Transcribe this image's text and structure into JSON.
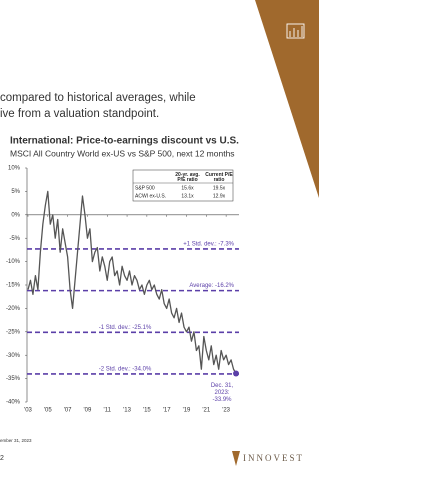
{
  "slide_text": [
    "compared to historical averages, while",
    "ive from a valuation standpoint."
  ],
  "footer": {
    "date": "ember 31, 2023",
    "page_number": "2",
    "logo": "INNOVEST"
  },
  "chart_data": {
    "type": "line",
    "title": "International: Price-to-earnings discount vs U.S.",
    "subtitle": "MSCI All Country World ex-US vs S&P 500, next 12 months",
    "xlim": [
      2002.9,
      2024.3
    ],
    "ylim": [
      -40,
      10
    ],
    "yticks": [
      {
        "value": 10,
        "label": "10%"
      },
      {
        "value": 5,
        "label": "5%"
      },
      {
        "value": 0,
        "label": "0%"
      },
      {
        "value": -5,
        "label": "-5%"
      },
      {
        "value": -10,
        "label": "-10%"
      },
      {
        "value": -15,
        "label": "-15%"
      },
      {
        "value": -20,
        "label": "-20%"
      },
      {
        "value": -25,
        "label": "-25%"
      },
      {
        "value": -30,
        "label": "-30%"
      },
      {
        "value": -35,
        "label": "-35%"
      },
      {
        "value": -40,
        "label": "-40%"
      }
    ],
    "xticks": [
      {
        "value": 2003,
        "label": "'03"
      },
      {
        "value": 2005,
        "label": "'05"
      },
      {
        "value": 2007,
        "label": "'07"
      },
      {
        "value": 2009,
        "label": "'09"
      },
      {
        "value": 2011,
        "label": "'11"
      },
      {
        "value": 2013,
        "label": "'13"
      },
      {
        "value": 2015,
        "label": "'15"
      },
      {
        "value": 2017,
        "label": "'17"
      },
      {
        "value": 2019,
        "label": "'19"
      },
      {
        "value": 2021,
        "label": "'21"
      },
      {
        "value": 2023,
        "label": "'23"
      }
    ],
    "x": [
      2003,
      2003.25,
      2003.5,
      2003.75,
      2004,
      2004.25,
      2004.5,
      2004.75,
      2005,
      2005.25,
      2005.5,
      2005.75,
      2006,
      2006.25,
      2006.5,
      2006.75,
      2007,
      2007.25,
      2007.5,
      2007.75,
      2008,
      2008.25,
      2008.5,
      2008.75,
      2009,
      2009.25,
      2009.5,
      2009.75,
      2010,
      2010.25,
      2010.5,
      2010.75,
      2011,
      2011.25,
      2011.5,
      2011.75,
      2012,
      2012.25,
      2012.5,
      2012.75,
      2013,
      2013.25,
      2013.5,
      2013.75,
      2014,
      2014.25,
      2014.5,
      2014.75,
      2015,
      2015.25,
      2015.5,
      2015.75,
      2016,
      2016.25,
      2016.5,
      2016.75,
      2017,
      2017.25,
      2017.5,
      2017.75,
      2018,
      2018.25,
      2018.5,
      2018.75,
      2019,
      2019.25,
      2019.5,
      2019.75,
      2020,
      2020.25,
      2020.5,
      2020.75,
      2021,
      2021.25,
      2021.5,
      2021.75,
      2022,
      2022.25,
      2022.5,
      2022.75,
      2023,
      2023.25,
      2023.5,
      2023.75,
      2024
    ],
    "series": [
      {
        "color": "#555555",
        "values": [
          -16,
          -14,
          -17,
          -13,
          -16,
          -8,
          -2,
          2,
          5,
          -2,
          0,
          -5,
          -1,
          -8,
          -3,
          -6,
          -9,
          -16,
          -20,
          -14,
          -8,
          -2,
          4,
          0,
          -5,
          -3,
          -10,
          -8,
          -7,
          -12,
          -9,
          -11,
          -14,
          -10,
          -9,
          -13,
          -12,
          -15,
          -11,
          -13,
          -14,
          -12,
          -15,
          -13,
          -14,
          -16,
          -15,
          -17,
          -15,
          -14,
          -16,
          -15,
          -17,
          -18,
          -16,
          -19,
          -20,
          -18,
          -21,
          -22,
          -20,
          -23,
          -21,
          -24,
          -25,
          -24,
          -27,
          -25,
          -29,
          -28,
          -33,
          -26,
          -29,
          -31,
          -28,
          -32,
          -30,
          -33,
          -29,
          -31,
          -30,
          -32,
          -31,
          -33,
          -33.9
        ]
      }
    ],
    "reference_lines": [
      {
        "value": -7.3,
        "label": "+1 Std. dev.: -7.3%"
      },
      {
        "value": -16.2,
        "label": "Average: -16.2%"
      },
      {
        "value": -25.1,
        "label": "-1 Std. dev.: -25.1%"
      },
      {
        "value": -34.0,
        "label": "-2 Std. dev.: -34.0%"
      }
    ],
    "reference_color": "#5b3fa8",
    "annotation": [
      "Dec. 31,",
      "2023:",
      "-33.9%"
    ],
    "table": {
      "columns": [
        "20-yr. avg. P/E ratio",
        "Current P/E ratio"
      ],
      "rows": [
        {
          "label": "S&P 500",
          "cells": [
            "15.6x",
            "19.5x"
          ]
        },
        {
          "label": "ACWI ex-U.S.",
          "cells": [
            "13.1x",
            "12.9x"
          ]
        }
      ]
    }
  }
}
